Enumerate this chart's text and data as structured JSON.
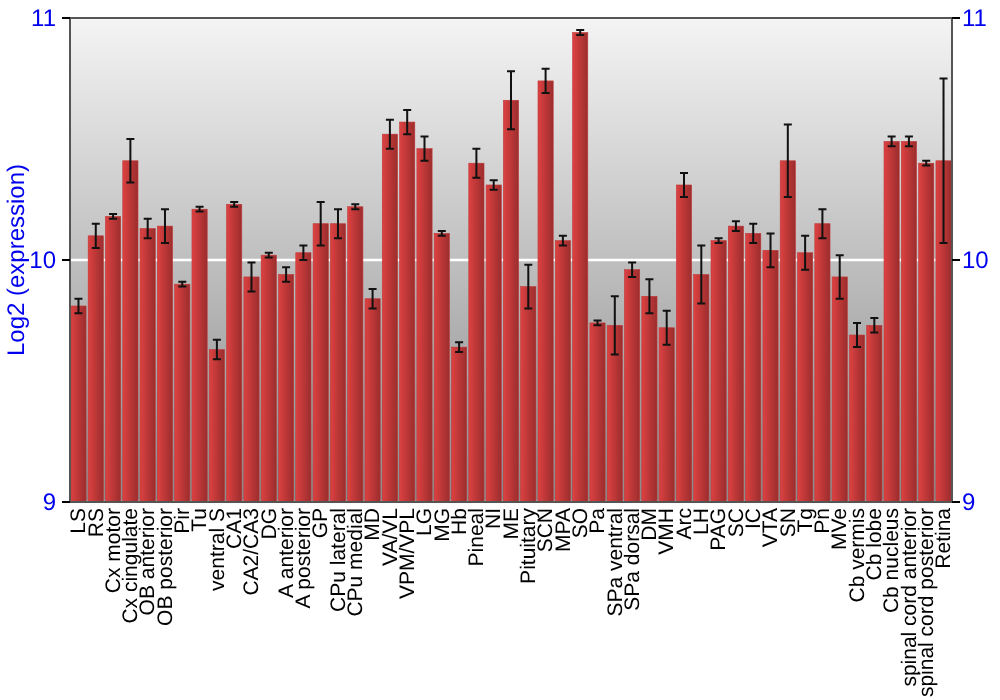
{
  "chart_data": {
    "type": "bar",
    "ylabel": "Log2 (expression)",
    "categories": [
      "LS",
      "RS",
      "Cx motor",
      "Cx cingulate",
      "OB anterior",
      "OB posterior",
      "Pir",
      "Tu",
      "ventral S",
      "CA1",
      "CA2/CA3",
      "DG",
      "A anterior",
      "A posterior",
      "GP",
      "CPu lateral",
      "CPu medial",
      "MD",
      "VA/VL",
      "VPM/VPL",
      "LG",
      "MG",
      "Hb",
      "Pineal",
      "NI",
      "ME",
      "Pituitary",
      "SCN",
      "MPA",
      "SO",
      "Pa",
      "SPa ventral",
      "SPa dorsal",
      "DM",
      "VMH",
      "Arc",
      "LH",
      "PAG",
      "SC",
      "IC",
      "VTA",
      "SN",
      "Tg",
      "Pn",
      "MVe",
      "Cb vermis",
      "Cb lobe",
      "Cb nucleus",
      "spinal cord anterior",
      "spinal cord posterior",
      "Retina"
    ],
    "values": [
      9.81,
      10.1,
      10.18,
      10.41,
      10.13,
      10.14,
      9.9,
      10.21,
      9.63,
      10.23,
      9.93,
      10.02,
      9.94,
      10.03,
      10.15,
      10.15,
      10.22,
      9.84,
      10.52,
      10.57,
      10.46,
      10.11,
      9.64,
      10.4,
      10.31,
      10.66,
      9.89,
      10.74,
      10.08,
      10.94,
      9.74,
      9.73,
      9.96,
      9.85,
      9.72,
      10.31,
      9.94,
      10.08,
      10.14,
      10.11,
      10.04,
      10.41,
      10.03,
      10.15,
      9.93,
      9.69,
      9.73,
      10.49,
      10.49,
      10.4,
      10.41
    ],
    "errors": [
      0.03,
      0.05,
      0.01,
      0.09,
      0.04,
      0.07,
      0.01,
      0.01,
      0.04,
      0.01,
      0.06,
      0.01,
      0.03,
      0.03,
      0.09,
      0.06,
      0.01,
      0.04,
      0.06,
      0.05,
      0.05,
      0.01,
      0.02,
      0.06,
      0.02,
      0.12,
      0.09,
      0.05,
      0.02,
      0.01,
      0.01,
      0.12,
      0.03,
      0.07,
      0.07,
      0.05,
      0.12,
      0.01,
      0.02,
      0.04,
      0.07,
      0.15,
      0.07,
      0.06,
      0.09,
      0.05,
      0.03,
      0.02,
      0.02,
      0.01,
      0.34
    ],
    "color": "#c03838",
    "ylim": [
      9,
      11
    ],
    "yticks": [
      9,
      10,
      11
    ],
    "y2lim": [
      9,
      11
    ],
    "y2ticks": [
      9,
      10,
      11
    ],
    "grid": "y"
  }
}
